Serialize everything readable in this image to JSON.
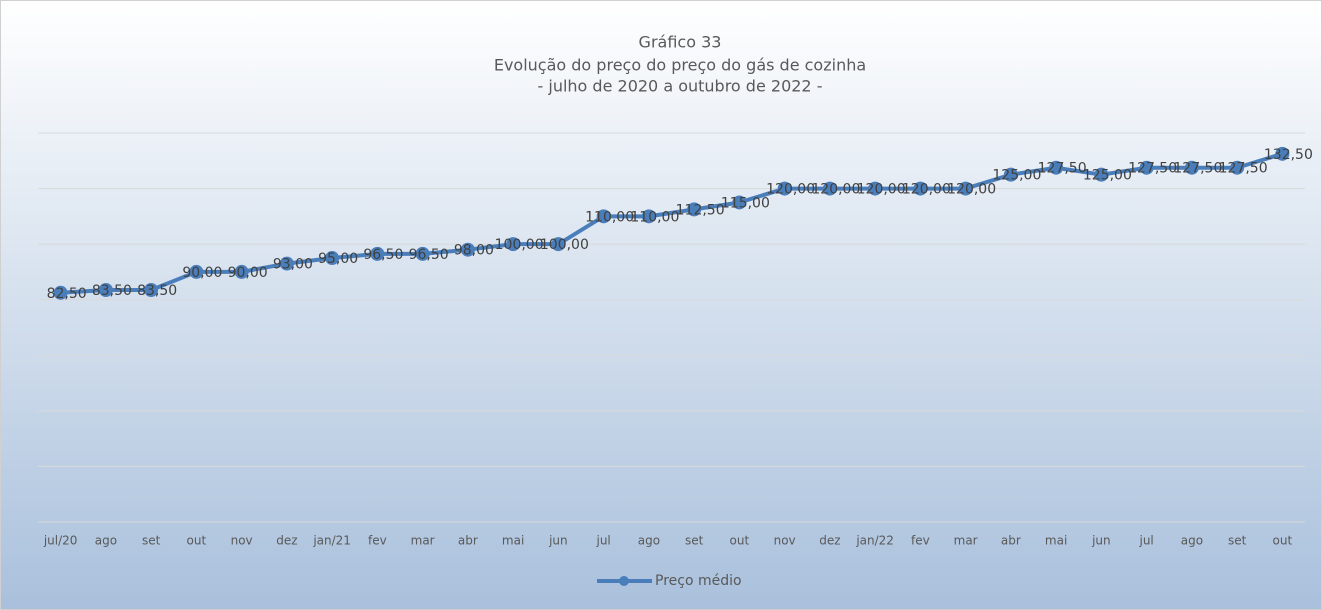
{
  "chart_data": {
    "type": "line",
    "title": "Gráfico 33",
    "subtitle": [
      "Evolução do preço do preço do gás de cozinha",
      "- julho de 2020 a outubro de 2022 -"
    ],
    "categories": [
      "jul/20",
      "ago",
      "set",
      "out",
      "nov",
      "dez",
      "jan/21",
      "fev",
      "mar",
      "abr",
      "mai",
      "jun",
      "jul",
      "ago",
      "set",
      "out",
      "nov",
      "dez",
      "jan/22",
      "fev",
      "mar",
      "abr",
      "mai",
      "jun",
      "jul",
      "ago",
      "set",
      "out"
    ],
    "series": [
      {
        "name": "Preço médio",
        "color": "#4a7ebb",
        "values": [
          82.5,
          83.5,
          83.5,
          90,
          90,
          93,
          95,
          96.5,
          96.5,
          98,
          100,
          100,
          110,
          110,
          112.5,
          115,
          120,
          120,
          120,
          120,
          120,
          125,
          127.5,
          125,
          127.5,
          127.5,
          127.5,
          132.5
        ],
        "value_labels": [
          "82,50",
          "83,50",
          "83,50",
          "90,00",
          "90,00",
          "93,00",
          "95,00",
          "96,50",
          "96,50",
          "98,00",
          "100,00",
          "100,00",
          "110,00",
          "110,00",
          "112,50",
          "115,00",
          "120,00",
          "120,00",
          "120,00",
          "120,00",
          "120,00",
          "125,00",
          "127,50",
          "125,00",
          "127,50",
          "127,50",
          "127,50",
          "132,50"
        ]
      }
    ],
    "ylim": [
      0,
      140
    ],
    "yticks": [
      0,
      20,
      40,
      60,
      80,
      100,
      120,
      140
    ],
    "grid": true,
    "legend": "bottom"
  }
}
